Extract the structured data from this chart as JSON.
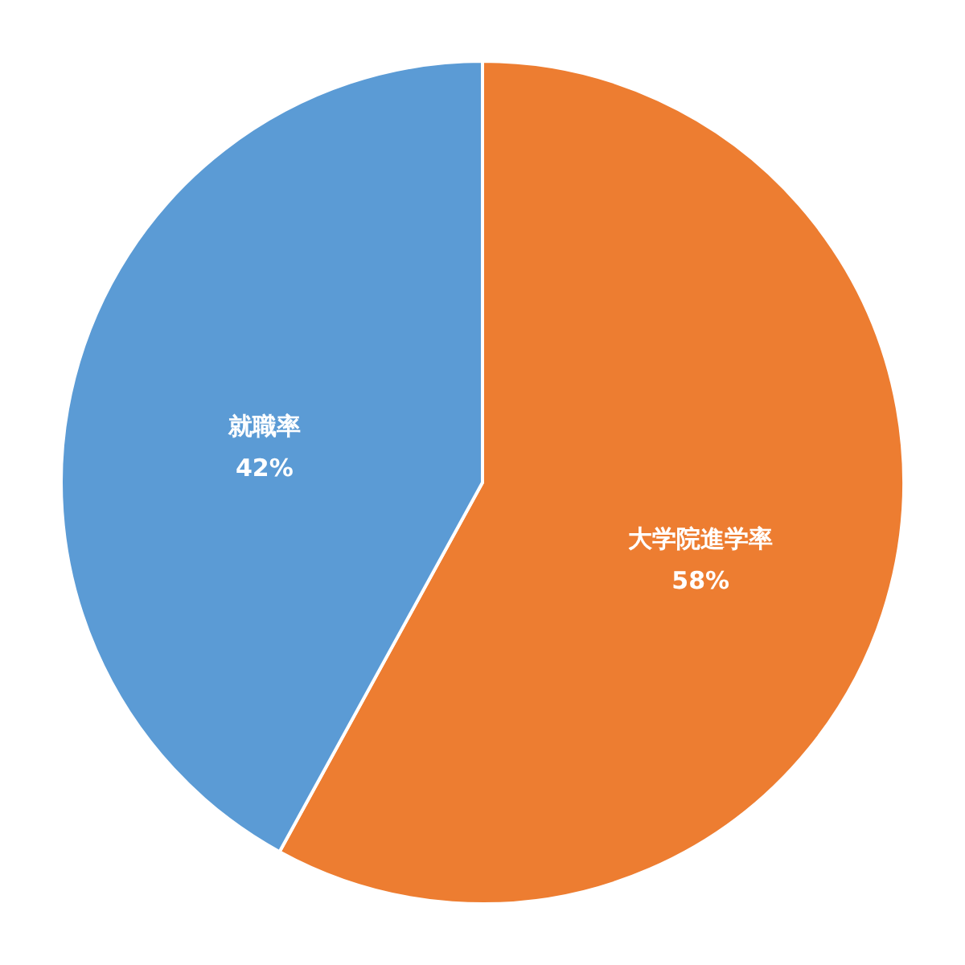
{
  "chart_data": {
    "type": "pie",
    "categories": [
      "大学院進学率",
      "就職率"
    ],
    "values": [
      58,
      42
    ],
    "colors": [
      "#ed7d31",
      "#5b9bd5"
    ],
    "value_labels": [
      "58%",
      "42%"
    ]
  }
}
